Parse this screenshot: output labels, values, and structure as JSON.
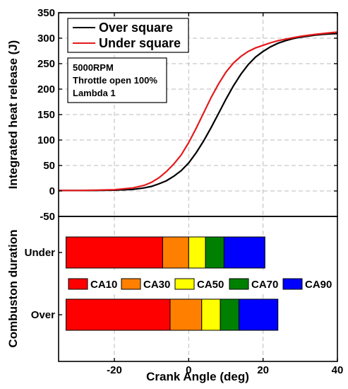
{
  "chart_data": [
    {
      "type": "line",
      "ylabel": "Integrated heat release (J)",
      "xlim": [
        -35,
        40
      ],
      "ylim": [
        -50,
        350
      ],
      "yticks": [
        -50,
        0,
        50,
        100,
        150,
        200,
        250,
        300,
        350
      ],
      "grid": "dashed",
      "legend_position": "top-left",
      "series": [
        {
          "name": "Over square",
          "color": "#000000",
          "points": [
            [
              -35,
              1
            ],
            [
              -30,
              1
            ],
            [
              -25,
              1
            ],
            [
              -20,
              1.5
            ],
            [
              -15,
              3
            ],
            [
              -12,
              6
            ],
            [
              -10,
              9
            ],
            [
              -8,
              14
            ],
            [
              -6,
              20
            ],
            [
              -4,
              29
            ],
            [
              -2,
              40
            ],
            [
              0,
              55
            ],
            [
              2,
              75
            ],
            [
              4,
              98
            ],
            [
              6,
              124
            ],
            [
              8,
              152
            ],
            [
              10,
              180
            ],
            [
              12,
              206
            ],
            [
              14,
              229
            ],
            [
              16,
              248
            ],
            [
              18,
              263
            ],
            [
              20,
              274
            ],
            [
              22,
              283
            ],
            [
              24,
              290
            ],
            [
              26,
              295
            ],
            [
              28,
              299
            ],
            [
              30,
              302
            ],
            [
              32,
              304
            ],
            [
              34,
              306
            ],
            [
              36,
              307.5
            ],
            [
              38,
              308.5
            ],
            [
              40,
              309
            ]
          ]
        },
        {
          "name": "Under square",
          "color": "#e41a1c",
          "points": [
            [
              -35,
              1
            ],
            [
              -30,
              1
            ],
            [
              -25,
              1.5
            ],
            [
              -20,
              2.5
            ],
            [
              -15,
              6
            ],
            [
              -12,
              11
            ],
            [
              -10,
              17
            ],
            [
              -8,
              26
            ],
            [
              -6,
              38
            ],
            [
              -4,
              53
            ],
            [
              -2,
              71
            ],
            [
              0,
              95
            ],
            [
              2,
              123
            ],
            [
              4,
              153
            ],
            [
              6,
              183
            ],
            [
              8,
              210
            ],
            [
              10,
              233
            ],
            [
              12,
              251
            ],
            [
              14,
              264
            ],
            [
              16,
              274
            ],
            [
              18,
              281
            ],
            [
              20,
              286
            ],
            [
              22,
              291
            ],
            [
              24,
              295
            ],
            [
              26,
              298
            ],
            [
              28,
              301
            ],
            [
              30,
              303.5
            ],
            [
              32,
              305.5
            ],
            [
              34,
              307.5
            ],
            [
              36,
              309
            ],
            [
              38,
              310.5
            ],
            [
              40,
              312
            ]
          ]
        }
      ],
      "annotation": [
        "5000RPM",
        "Throttle open 100%",
        "Lambda 1"
      ]
    },
    {
      "type": "bar",
      "orientation": "horizontal",
      "stacked": true,
      "xlabel": "Crank Angle (deg)",
      "ylabel": "Combuston duration",
      "xlim": [
        -35,
        40
      ],
      "xticks": [
        -20,
        0,
        20,
        40
      ],
      "categories": [
        "Under",
        "Over"
      ],
      "series": [
        {
          "name": "CA10",
          "color": "#ff0000",
          "ranges": [
            [
              -33,
              -7
            ],
            [
              -33,
              -5
            ]
          ]
        },
        {
          "name": "CA30",
          "color": "#ff8000",
          "ranges": [
            [
              -7,
              0
            ],
            [
              -5,
              3.5
            ]
          ]
        },
        {
          "name": "CA50",
          "color": "#ffff00",
          "ranges": [
            [
              0,
              4.5
            ],
            [
              3.5,
              8.5
            ]
          ]
        },
        {
          "name": "CA70",
          "color": "#008000",
          "ranges": [
            [
              4.5,
              9.5
            ],
            [
              8.5,
              13.5
            ]
          ]
        },
        {
          "name": "CA90",
          "color": "#0000ff",
          "ranges": [
            [
              9.5,
              20.5
            ],
            [
              13.5,
              24
            ]
          ]
        }
      ]
    }
  ]
}
